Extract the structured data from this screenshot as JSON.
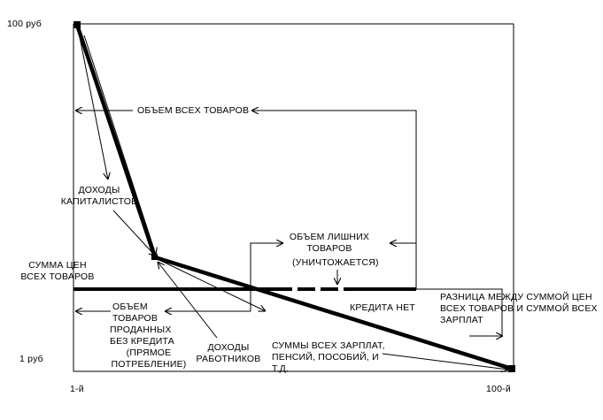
{
  "axis": {
    "y_top": "100 руб",
    "y_bottom": "1 руб",
    "x_left": "1-й",
    "x_right": "100-й"
  },
  "labels": {
    "all_goods_volume": "ОБЪЕМ ВСЕХ ТОВАРОВ",
    "capitalist_income": [
      "ДОХОДЫ",
      "КАПИТАЛИСТОВ"
    ],
    "excess_goods": [
      "ОБЪЕМ ЛИШНИХ",
      "ТОВАРОВ"
    ],
    "destroyed": "(УНИЧТОЖАЕТСЯ)",
    "sum_of_prices": [
      "СУММА ЦЕН",
      "ВСЕХ ТОВАРОВ"
    ],
    "credit_none": "КРЕДИТА  НЕТ",
    "difference": [
      "РАЗНИЦА МЕЖДУ СУММОЙ ЦЕН",
      "ВСЕХ ТОВАРОВ И СУММОЙ ВСЕХ",
      "ЗАРПЛАТ"
    ],
    "sold_goods": [
      "ОБЪЕМ",
      "ТОВАРОВ",
      "ПРОДАННЫХ",
      "БЕЗ КРЕДИТА"
    ],
    "direct_consumption": [
      "(ПРЯМОЕ",
      "ПОТРЕБЛЕНИЕ)"
    ],
    "worker_income": [
      "ДОХОДЫ",
      "РАБОТНИКОВ"
    ],
    "all_wages": [
      "СУММЫ ВСЕХ ЗАРПЛАТ,",
      "ПЕНСИЙ, ПОСОБИЙ, И",
      "Т.Д."
    ]
  }
}
